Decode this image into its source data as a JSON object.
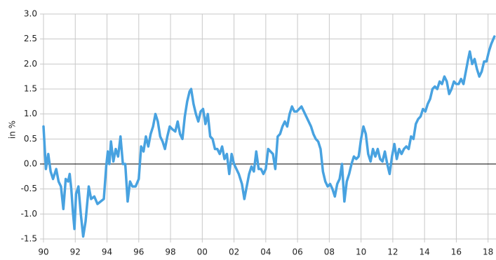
{
  "chart_data": {
    "type": "line",
    "y_label": "in %",
    "color": "#48a2e0",
    "grid": true,
    "xlim": [
      1990,
      2018.5
    ],
    "ylim": [
      -1.5,
      3
    ],
    "xticks": [
      {
        "value": 1990,
        "label": "90"
      },
      {
        "value": 1992,
        "label": "92"
      },
      {
        "value": 1994,
        "label": "94"
      },
      {
        "value": 1996,
        "label": "96"
      },
      {
        "value": 1998,
        "label": "98"
      },
      {
        "value": 2000,
        "label": "00"
      },
      {
        "value": 2002,
        "label": "02"
      },
      {
        "value": 2004,
        "label": "04"
      },
      {
        "value": 2006,
        "label": "06"
      },
      {
        "value": 2008,
        "label": "08"
      },
      {
        "value": 2010,
        "label": "10"
      },
      {
        "value": 2012,
        "label": "12"
      },
      {
        "value": 2014,
        "label": "14"
      },
      {
        "value": 2016,
        "label": "16"
      },
      {
        "value": 2018,
        "label": "18"
      }
    ],
    "yticks": [
      {
        "value": 3,
        "label": "3.0"
      },
      {
        "value": 2.5,
        "label": "2.5"
      },
      {
        "value": 2,
        "label": "2.0"
      },
      {
        "value": 1.5,
        "label": "1.5"
      },
      {
        "value": 1,
        "label": "1.0"
      },
      {
        "value": 0.5,
        "label": "0.5"
      },
      {
        "value": 0,
        "label": "0.0"
      },
      {
        "value": -0.5,
        "label": "-0.5"
      },
      {
        "value": -1,
        "label": "-1.0"
      },
      {
        "value": -1.5,
        "label": "-1.5"
      }
    ],
    "x": [
      1990.0,
      1990.15,
      1990.3,
      1990.45,
      1990.6,
      1990.8,
      1990.95,
      1991.1,
      1991.25,
      1991.4,
      1991.55,
      1991.65,
      1991.75,
      1991.85,
      1991.95,
      1992.05,
      1992.2,
      1992.35,
      1992.5,
      1992.65,
      1992.85,
      1993.0,
      1993.2,
      1993.4,
      1993.6,
      1993.8,
      1993.95,
      1994.05,
      1994.15,
      1994.25,
      1994.4,
      1994.55,
      1994.7,
      1994.85,
      1995.0,
      1995.15,
      1995.3,
      1995.45,
      1995.6,
      1995.8,
      1996.0,
      1996.15,
      1996.3,
      1996.45,
      1996.6,
      1996.75,
      1996.9,
      1997.05,
      1997.2,
      1997.35,
      1997.5,
      1997.65,
      1997.8,
      1997.95,
      1998.1,
      1998.3,
      1998.45,
      1998.6,
      1998.75,
      1998.9,
      1999.05,
      1999.2,
      1999.3,
      1999.45,
      1999.6,
      1999.75,
      1999.9,
      2000.05,
      2000.2,
      2000.35,
      2000.5,
      2000.65,
      2000.8,
      2000.95,
      2001.1,
      2001.25,
      2001.4,
      2001.55,
      2001.7,
      2001.85,
      2002.0,
      2002.15,
      2002.3,
      2002.5,
      2002.65,
      2002.8,
      2002.95,
      2003.1,
      2003.25,
      2003.4,
      2003.55,
      2003.7,
      2003.85,
      2004.0,
      2004.15,
      2004.3,
      2004.45,
      2004.6,
      2004.75,
      2004.9,
      2005.05,
      2005.2,
      2005.35,
      2005.5,
      2005.65,
      2005.8,
      2005.95,
      2006.1,
      2006.25,
      2006.4,
      2006.55,
      2006.7,
      2006.85,
      2007.0,
      2007.15,
      2007.3,
      2007.45,
      2007.6,
      2007.75,
      2007.9,
      2008.05,
      2008.2,
      2008.35,
      2008.5,
      2008.65,
      2008.8,
      2008.95,
      2009.1,
      2009.25,
      2009.4,
      2009.55,
      2009.7,
      2009.85,
      2010.0,
      2010.15,
      2010.3,
      2010.45,
      2010.6,
      2010.75,
      2010.9,
      2011.05,
      2011.2,
      2011.35,
      2011.5,
      2011.65,
      2011.8,
      2011.95,
      2012.1,
      2012.25,
      2012.4,
      2012.55,
      2012.7,
      2012.85,
      2013.0,
      2013.15,
      2013.3,
      2013.45,
      2013.6,
      2013.75,
      2013.9,
      2014.05,
      2014.2,
      2014.35,
      2014.5,
      2014.65,
      2014.8,
      2014.95,
      2015.1,
      2015.25,
      2015.4,
      2015.55,
      2015.7,
      2015.85,
      2016.0,
      2016.15,
      2016.3,
      2016.45,
      2016.6,
      2016.75,
      2016.85,
      2017.0,
      2017.15,
      2017.3,
      2017.45,
      2017.6,
      2017.75,
      2017.9,
      2018.05,
      2018.2,
      2018.4
    ],
    "values": [
      0.75,
      -0.1,
      0.2,
      -0.15,
      -0.3,
      -0.1,
      -0.35,
      -0.45,
      -0.9,
      -0.3,
      -0.35,
      -0.2,
      -0.5,
      -0.95,
      -1.3,
      -0.6,
      -0.45,
      -1.0,
      -1.45,
      -1.15,
      -0.45,
      -0.7,
      -0.65,
      -0.8,
      -0.75,
      -0.7,
      -0.05,
      0.25,
      0.0,
      0.45,
      0.05,
      0.3,
      0.15,
      0.55,
      0.0,
      0.0,
      -0.75,
      -0.35,
      -0.45,
      -0.45,
      -0.3,
      0.35,
      0.25,
      0.55,
      0.35,
      0.6,
      0.75,
      1.0,
      0.85,
      0.55,
      0.45,
      0.3,
      0.55,
      0.75,
      0.7,
      0.65,
      0.85,
      0.6,
      0.5,
      0.95,
      1.25,
      1.45,
      1.5,
      1.2,
      1.0,
      0.85,
      1.05,
      1.1,
      0.8,
      1.0,
      0.55,
      0.5,
      0.3,
      0.3,
      0.2,
      0.35,
      0.1,
      0.2,
      -0.2,
      0.2,
      0.0,
      -0.1,
      -0.2,
      -0.4,
      -0.7,
      -0.45,
      -0.2,
      -0.05,
      -0.15,
      0.25,
      -0.1,
      -0.1,
      -0.2,
      -0.1,
      0.3,
      0.25,
      0.2,
      -0.1,
      0.55,
      0.6,
      0.75,
      0.85,
      0.75,
      1.0,
      1.15,
      1.05,
      1.05,
      1.1,
      1.15,
      1.05,
      0.95,
      0.85,
      0.75,
      0.6,
      0.5,
      0.45,
      0.3,
      -0.15,
      -0.35,
      -0.45,
      -0.4,
      -0.5,
      -0.65,
      -0.4,
      -0.3,
      0.0,
      -0.75,
      -0.35,
      -0.2,
      0.0,
      0.15,
      0.1,
      0.15,
      0.5,
      0.75,
      0.6,
      0.2,
      0.05,
      0.3,
      0.15,
      0.3,
      0.1,
      0.05,
      0.25,
      0.0,
      -0.2,
      0.15,
      0.4,
      0.1,
      0.3,
      0.2,
      0.3,
      0.35,
      0.3,
      0.55,
      0.5,
      0.8,
      0.9,
      0.95,
      1.1,
      1.05,
      1.2,
      1.3,
      1.5,
      1.55,
      1.5,
      1.65,
      1.6,
      1.75,
      1.65,
      1.4,
      1.5,
      1.65,
      1.6,
      1.6,
      1.7,
      1.6,
      1.85,
      2.1,
      2.25,
      2.0,
      2.1,
      1.9,
      1.75,
      1.85,
      2.05,
      2.05,
      2.25,
      2.4,
      2.55
    ]
  }
}
